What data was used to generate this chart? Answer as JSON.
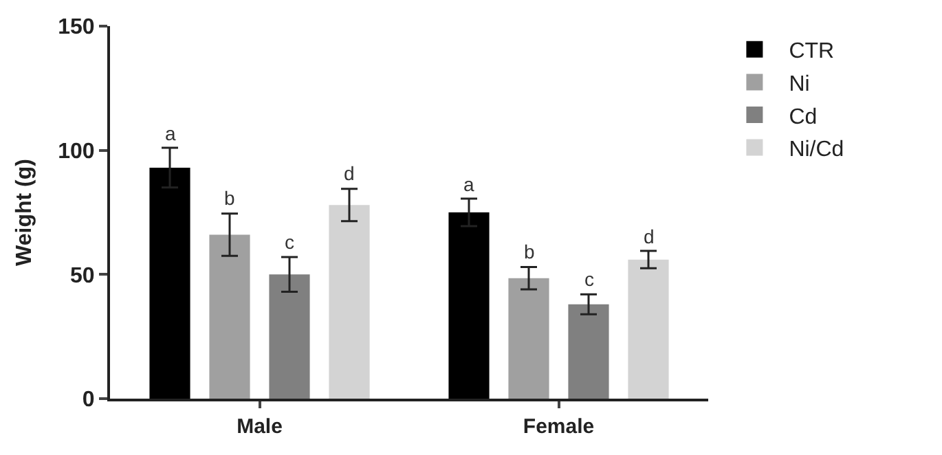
{
  "chart_data": {
    "type": "bar",
    "ylabel": "Weight (g)",
    "categories": [
      "Male",
      "Female"
    ],
    "series": [
      {
        "name": "CTR",
        "color": "#000000",
        "values": [
          93,
          75
        ],
        "errors": [
          8,
          5.5
        ],
        "value_labels": [
          "a",
          "a"
        ]
      },
      {
        "name": "Ni",
        "color": "#a0a0a0",
        "values": [
          66,
          48.5
        ],
        "errors": [
          8.5,
          4.5
        ],
        "value_labels": [
          "b",
          "b"
        ]
      },
      {
        "name": "Cd",
        "color": "#808080",
        "values": [
          50,
          38
        ],
        "errors": [
          7,
          4
        ],
        "value_labels": [
          "c",
          "c"
        ]
      },
      {
        "name": "Ni/Cd",
        "color": "#d3d3d3",
        "values": [
          78,
          56
        ],
        "errors": [
          6.5,
          3.5
        ],
        "value_labels": [
          "d",
          "d"
        ]
      }
    ],
    "ylim": [
      0,
      150
    ],
    "yticks": [
      0,
      50,
      100,
      150
    ],
    "legend": "top right"
  }
}
